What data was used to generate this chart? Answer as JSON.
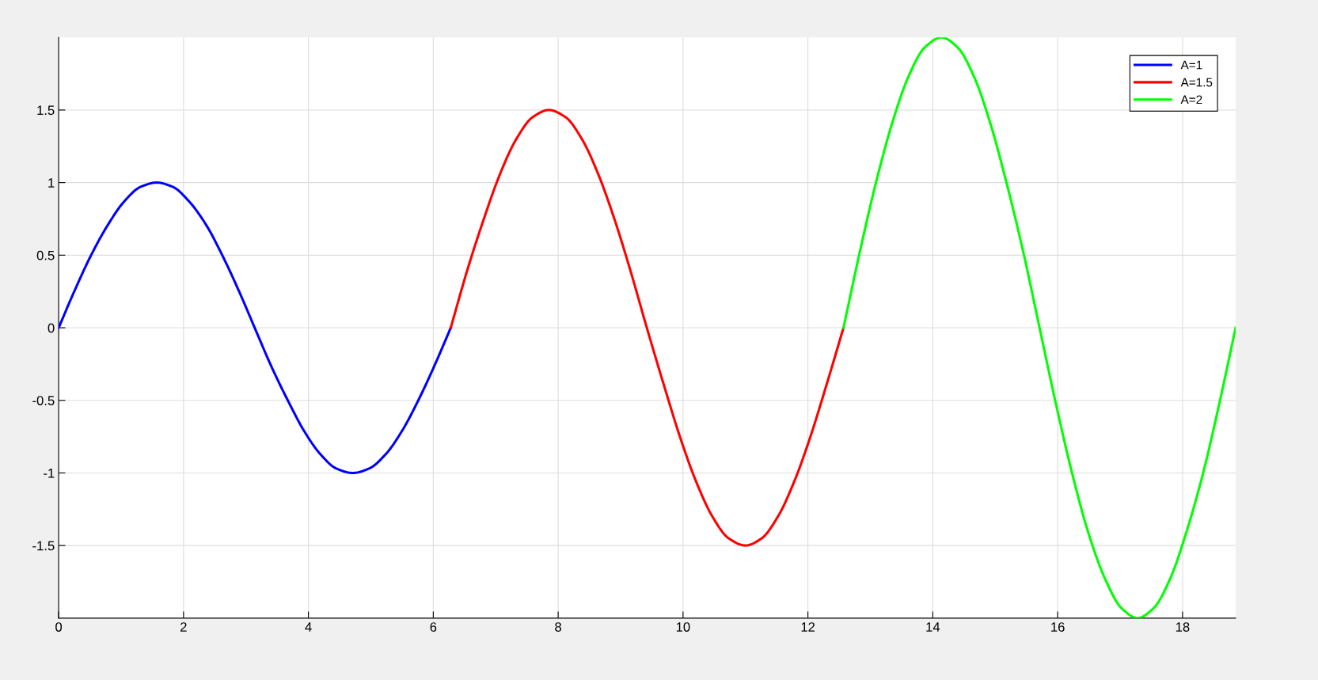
{
  "chart_data": {
    "type": "line",
    "series": [
      {
        "name": "A=1",
        "color": "#0000ff",
        "x": [
          0,
          0.26,
          0.52,
          0.79,
          1.05,
          1.31,
          1.57,
          1.83,
          2.09,
          2.36,
          2.62,
          2.88,
          3.14,
          3.4,
          3.67,
          3.93,
          4.19,
          4.45,
          4.71,
          4.97,
          5.24,
          5.5,
          5.76,
          6.02,
          6.28
        ],
        "values": [
          0,
          0.26,
          0.5,
          0.71,
          0.87,
          0.97,
          1,
          0.97,
          0.87,
          0.71,
          0.5,
          0.26,
          0,
          -0.26,
          -0.5,
          -0.71,
          -0.87,
          -0.97,
          -1,
          -0.97,
          -0.87,
          -0.71,
          -0.5,
          -0.26,
          0
        ]
      },
      {
        "name": "A=1.5",
        "color": "#ff0000",
        "x": [
          6.28,
          6.54,
          6.81,
          7.07,
          7.33,
          7.59,
          7.85,
          8.12,
          8.38,
          8.64,
          8.9,
          9.16,
          9.42,
          9.69,
          9.95,
          10.21,
          10.47,
          10.73,
          11.0,
          11.26,
          11.52,
          11.78,
          12.04,
          12.3,
          12.57
        ],
        "values": [
          0,
          0.39,
          0.75,
          1.06,
          1.3,
          1.45,
          1.5,
          1.45,
          1.3,
          1.06,
          0.75,
          0.39,
          0,
          -0.39,
          -0.75,
          -1.06,
          -1.3,
          -1.45,
          -1.5,
          -1.45,
          -1.3,
          -1.06,
          -0.75,
          -0.39,
          0
        ]
      },
      {
        "name": "A=2",
        "color": "#00ff00",
        "x": [
          12.57,
          12.83,
          13.09,
          13.35,
          13.61,
          13.87,
          14.14,
          14.4,
          14.66,
          14.92,
          15.18,
          15.45,
          15.71,
          15.97,
          16.23,
          16.49,
          16.76,
          17.02,
          17.28,
          17.54,
          17.8,
          18.06,
          18.33,
          18.59,
          18.85
        ],
        "values": [
          0,
          0.52,
          1,
          1.41,
          1.73,
          1.93,
          2,
          1.93,
          1.73,
          1.41,
          1,
          0.52,
          0,
          -0.52,
          -1,
          -1.41,
          -1.73,
          -1.93,
          -2,
          -1.93,
          -1.73,
          -1.41,
          -1,
          -0.52,
          0
        ]
      }
    ],
    "xlim": [
      0,
      18.85
    ],
    "ylim": [
      -2,
      2
    ],
    "xticks": [
      0,
      2,
      4,
      6,
      8,
      10,
      12,
      14,
      16,
      18
    ],
    "yticks": [
      {
        "value": -1.5,
        "label": "-1.5"
      },
      {
        "value": -1,
        "label": "-1"
      },
      {
        "value": -0.5,
        "label": "-0.5"
      },
      0,
      0.5,
      1,
      1.5
    ],
    "grid": true,
    "legend": "top right",
    "marker": "none",
    "line_style": "solid"
  }
}
